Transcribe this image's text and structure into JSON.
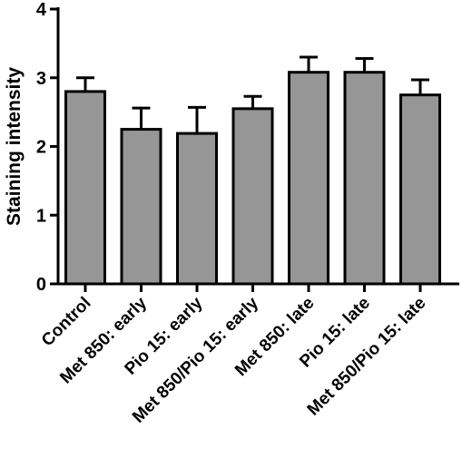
{
  "chart_data": {
    "type": "bar",
    "title": "",
    "xlabel": "",
    "ylabel": "Staining intensity",
    "ylim": [
      0,
      4
    ],
    "yticks": [
      0,
      1,
      2,
      3,
      4
    ],
    "grid": false,
    "legend": "none",
    "bar_color": "#969696",
    "categories": [
      "Control",
      "Met 850: early",
      "Pio 15: early",
      "Met 850/Pio 15: early",
      "Met 850: late",
      "Pio 15: late",
      "Met 850/Pio 15: late"
    ],
    "values": [
      2.8,
      2.25,
      2.19,
      2.55,
      3.08,
      3.08,
      2.75
    ],
    "error_upper": [
      0.2,
      0.31,
      0.38,
      0.18,
      0.22,
      0.2,
      0.22
    ]
  }
}
